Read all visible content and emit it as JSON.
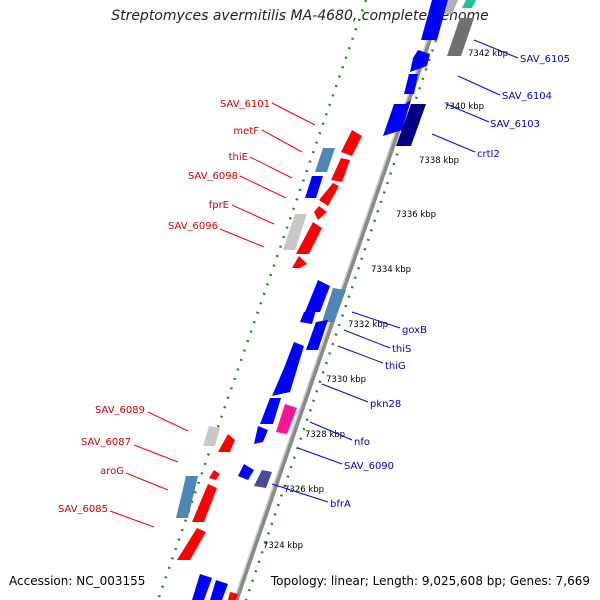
{
  "title": "Streptomyces avermitilis MA-4680, complete genome",
  "footer": {
    "accession": "Accession: NC_003155",
    "summary": "Topology: linear; Length: 9,025,608 bp; Genes: 7,669"
  },
  "colors": {
    "forward": "#ff0000",
    "reverse": "#0000ff",
    "steelblue": "#4f86b8",
    "gray": "#c8c8c8",
    "darkgray": "#707070",
    "navy": "#000080",
    "magenta": "#ff1493",
    "slate": "#4a4a9c",
    "backbone": "#8a8a8a",
    "ruler": "#228b22",
    "tick_text": "#000000"
  },
  "ticks": [
    "7342 kbp",
    "7340 kbp",
    "7338 kbp",
    "7336 kbp",
    "7334 kbp",
    "7332 kbp",
    "7330 kbp",
    "7328 kbp",
    "7326 kbp",
    "7324 kbp"
  ],
  "left_labels": [
    "SAV_6101",
    "metF",
    "thiE",
    "SAV_6098",
    "fprE",
    "SAV_6096",
    "SAV_6089",
    "SAV_6087",
    "aroG",
    "SAV_6085"
  ],
  "right_labels": [
    "SAV_6105",
    "SAV_6104",
    "SAV_6103",
    "crtI2",
    "goxB",
    "thiS",
    "thiG",
    "pkn28",
    "nfo",
    "SAV_6090",
    "bfrA"
  ]
}
